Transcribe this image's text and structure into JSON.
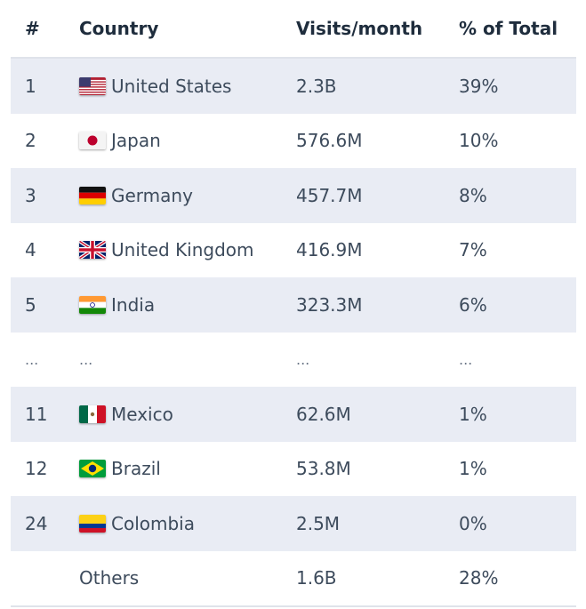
{
  "headers": {
    "rank": "#",
    "country": "Country",
    "visits": "Visits/month",
    "percent": "% of Total"
  },
  "rows": [
    {
      "rank": "1",
      "country": "United States",
      "visits": "2.3B",
      "percent": "39%",
      "flag": "us-flag-icon"
    },
    {
      "rank": "2",
      "country": "Japan",
      "visits": "576.6M",
      "percent": "10%",
      "flag": "jp-flag-icon"
    },
    {
      "rank": "3",
      "country": "Germany",
      "visits": "457.7M",
      "percent": "8%",
      "flag": "de-flag-icon"
    },
    {
      "rank": "4",
      "country": "United Kingdom",
      "visits": "416.9M",
      "percent": "7%",
      "flag": "gb-flag-icon"
    },
    {
      "rank": "5",
      "country": "India",
      "visits": "323.3M",
      "percent": "6%",
      "flag": "in-flag-icon"
    },
    {
      "rank": "...",
      "country": "...",
      "visits": "...",
      "percent": "..."
    },
    {
      "rank": "11",
      "country": "Mexico",
      "visits": "62.6M",
      "percent": "1%",
      "flag": "mx-flag-icon"
    },
    {
      "rank": "12",
      "country": "Brazil",
      "visits": "53.8M",
      "percent": "1%",
      "flag": "br-flag-icon"
    },
    {
      "rank": "24",
      "country": "Colombia",
      "visits": "2.5M",
      "percent": "0%",
      "flag": "co-flag-icon"
    },
    {
      "rank": "",
      "country": "Others",
      "visits": "1.6B",
      "percent": "28%"
    }
  ],
  "colors": {
    "shaded_row": "#e9ecf4",
    "text": "#3d4b5c",
    "header_text": "#1f2d3d",
    "divider": "#dfe3ea"
  }
}
